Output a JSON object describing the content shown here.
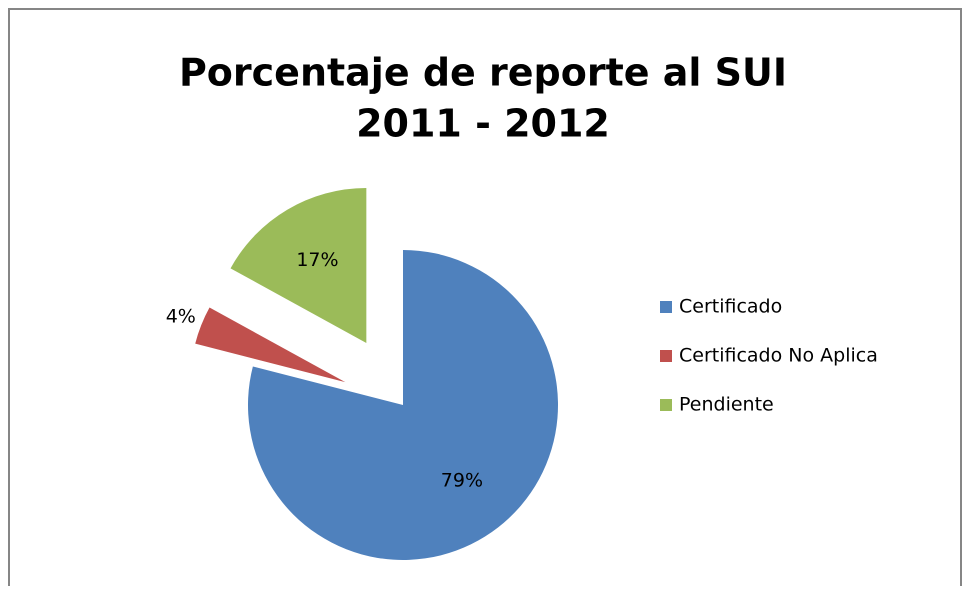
{
  "chart_data": {
    "type": "pie",
    "title": [
      "Porcentaje de reporte al SUI",
      "2011 - 2012"
    ],
    "categories": [
      "Certificado",
      "Certificado No Aplica",
      "Pendiente"
    ],
    "values": [
      79,
      4,
      17
    ],
    "value_labels": [
      "79%",
      "4%",
      "17%"
    ],
    "colors": [
      "#4f81bd",
      "#c0504d",
      "#9bbb59"
    ],
    "legend": "right"
  }
}
